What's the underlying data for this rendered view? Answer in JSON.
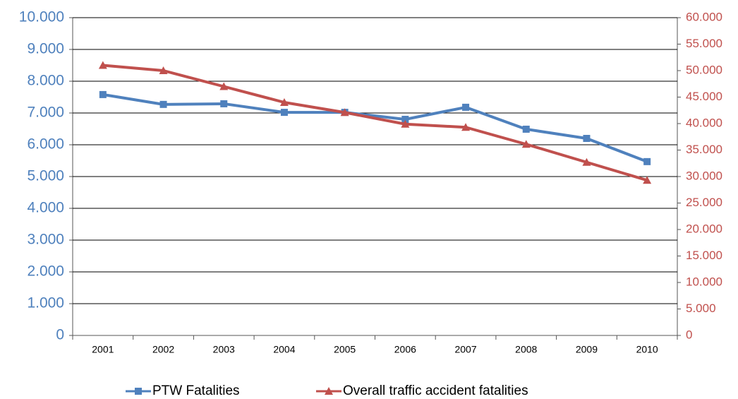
{
  "chart_data": {
    "type": "line",
    "categories": [
      "2001",
      "2002",
      "2003",
      "2004",
      "2005",
      "2006",
      "2007",
      "2008",
      "2009",
      "2010"
    ],
    "series": [
      {
        "name": "PTW Fatalities",
        "color": "#4f81bd",
        "marker": "square",
        "axis": "y",
        "values": [
          7580,
          7270,
          7290,
          7020,
          7020,
          6800,
          7180,
          6490,
          6200,
          5470
        ]
      },
      {
        "name": "Overall traffic accident fatalities",
        "color": "#c0504d",
        "marker": "triangle",
        "axis": "y2",
        "values": [
          51000,
          50000,
          47000,
          44000,
          42100,
          39900,
          39300,
          36100,
          32700,
          29300
        ]
      }
    ],
    "ylim": [
      0,
      10000
    ],
    "yticks": [
      {
        "value": 0,
        "label": "0"
      },
      {
        "value": 1000,
        "label": "1.000"
      },
      {
        "value": 2000,
        "label": "2.000"
      },
      {
        "value": 3000,
        "label": "3.000"
      },
      {
        "value": 4000,
        "label": "4.000"
      },
      {
        "value": 5000,
        "label": "5.000"
      },
      {
        "value": 6000,
        "label": "6.000"
      },
      {
        "value": 7000,
        "label": "7.000"
      },
      {
        "value": 8000,
        "label": "8.000"
      },
      {
        "value": 9000,
        "label": "9.000"
      },
      {
        "value": 10000,
        "label": "10.000"
      }
    ],
    "y2lim": [
      0,
      60000
    ],
    "y2ticks": [
      {
        "value": 0,
        "label": "0"
      },
      {
        "value": 5000,
        "label": "5.000"
      },
      {
        "value": 10000,
        "label": "10.000"
      },
      {
        "value": 15000,
        "label": "15.000"
      },
      {
        "value": 20000,
        "label": "20.000"
      },
      {
        "value": 25000,
        "label": "25.000"
      },
      {
        "value": 30000,
        "label": "30.000"
      },
      {
        "value": 35000,
        "label": "35.000"
      },
      {
        "value": 40000,
        "label": "40.000"
      },
      {
        "value": 45000,
        "label": "45.000"
      },
      {
        "value": 50000,
        "label": "50.000"
      },
      {
        "value": 55000,
        "label": "55.000"
      },
      {
        "value": 60000,
        "label": "60.000"
      }
    ],
    "grid": true,
    "legend": "bottom"
  }
}
